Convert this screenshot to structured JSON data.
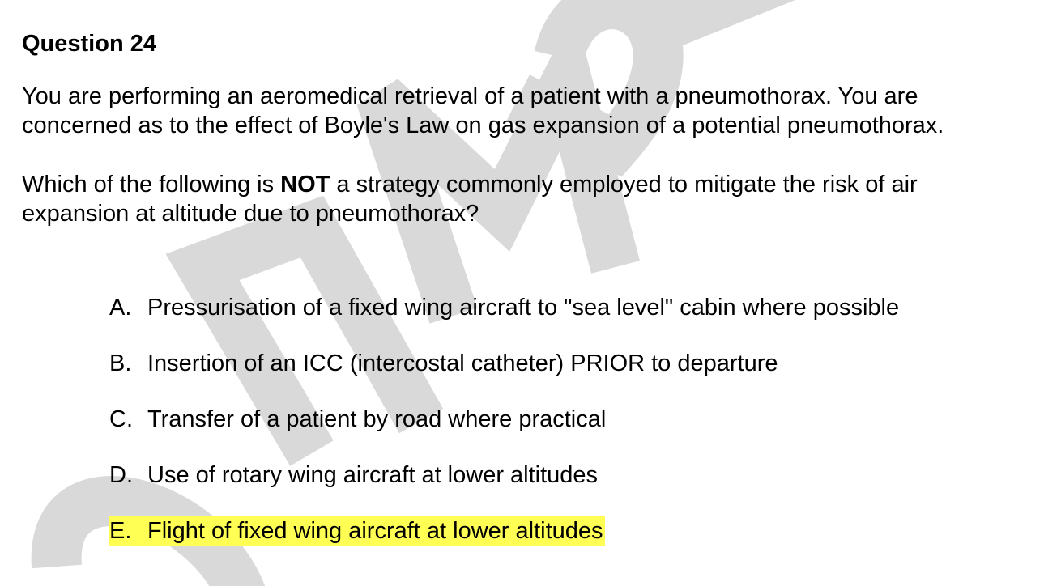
{
  "watermark": {
    "text": "SAMPLE",
    "color": "#d9d9d9"
  },
  "question": {
    "title": "Question 24",
    "stem_lines": [
      "You are performing an aeromedical retrieval of a patient with a pneumothorax. You are",
      "concerned as to the effect of Boyle's Law on gas expansion of a potential pneumothorax."
    ],
    "prompt_before": "Which of the following is ",
    "prompt_emphasis": "NOT",
    "prompt_after_line1": " a strategy commonly employed to mitigate the risk of air",
    "prompt_line2": "expansion at altitude due to pneumothorax?",
    "options": [
      {
        "letter": "A.",
        "text": "Pressurisation of a fixed wing aircraft to \"sea level\" cabin where possible"
      },
      {
        "letter": "B.",
        "text": "Insertion of an ICC (intercostal catheter) PRIOR to departure"
      },
      {
        "letter": "C.",
        "text": "Transfer of a patient by road where practical"
      },
      {
        "letter": "D.",
        "text": "Use of rotary wing aircraft at lower altitudes"
      },
      {
        "letter": "E.",
        "text": "Flight of fixed wing aircraft at lower altitudes",
        "highlighted": true
      }
    ],
    "highlight_color": "#ffff54"
  }
}
